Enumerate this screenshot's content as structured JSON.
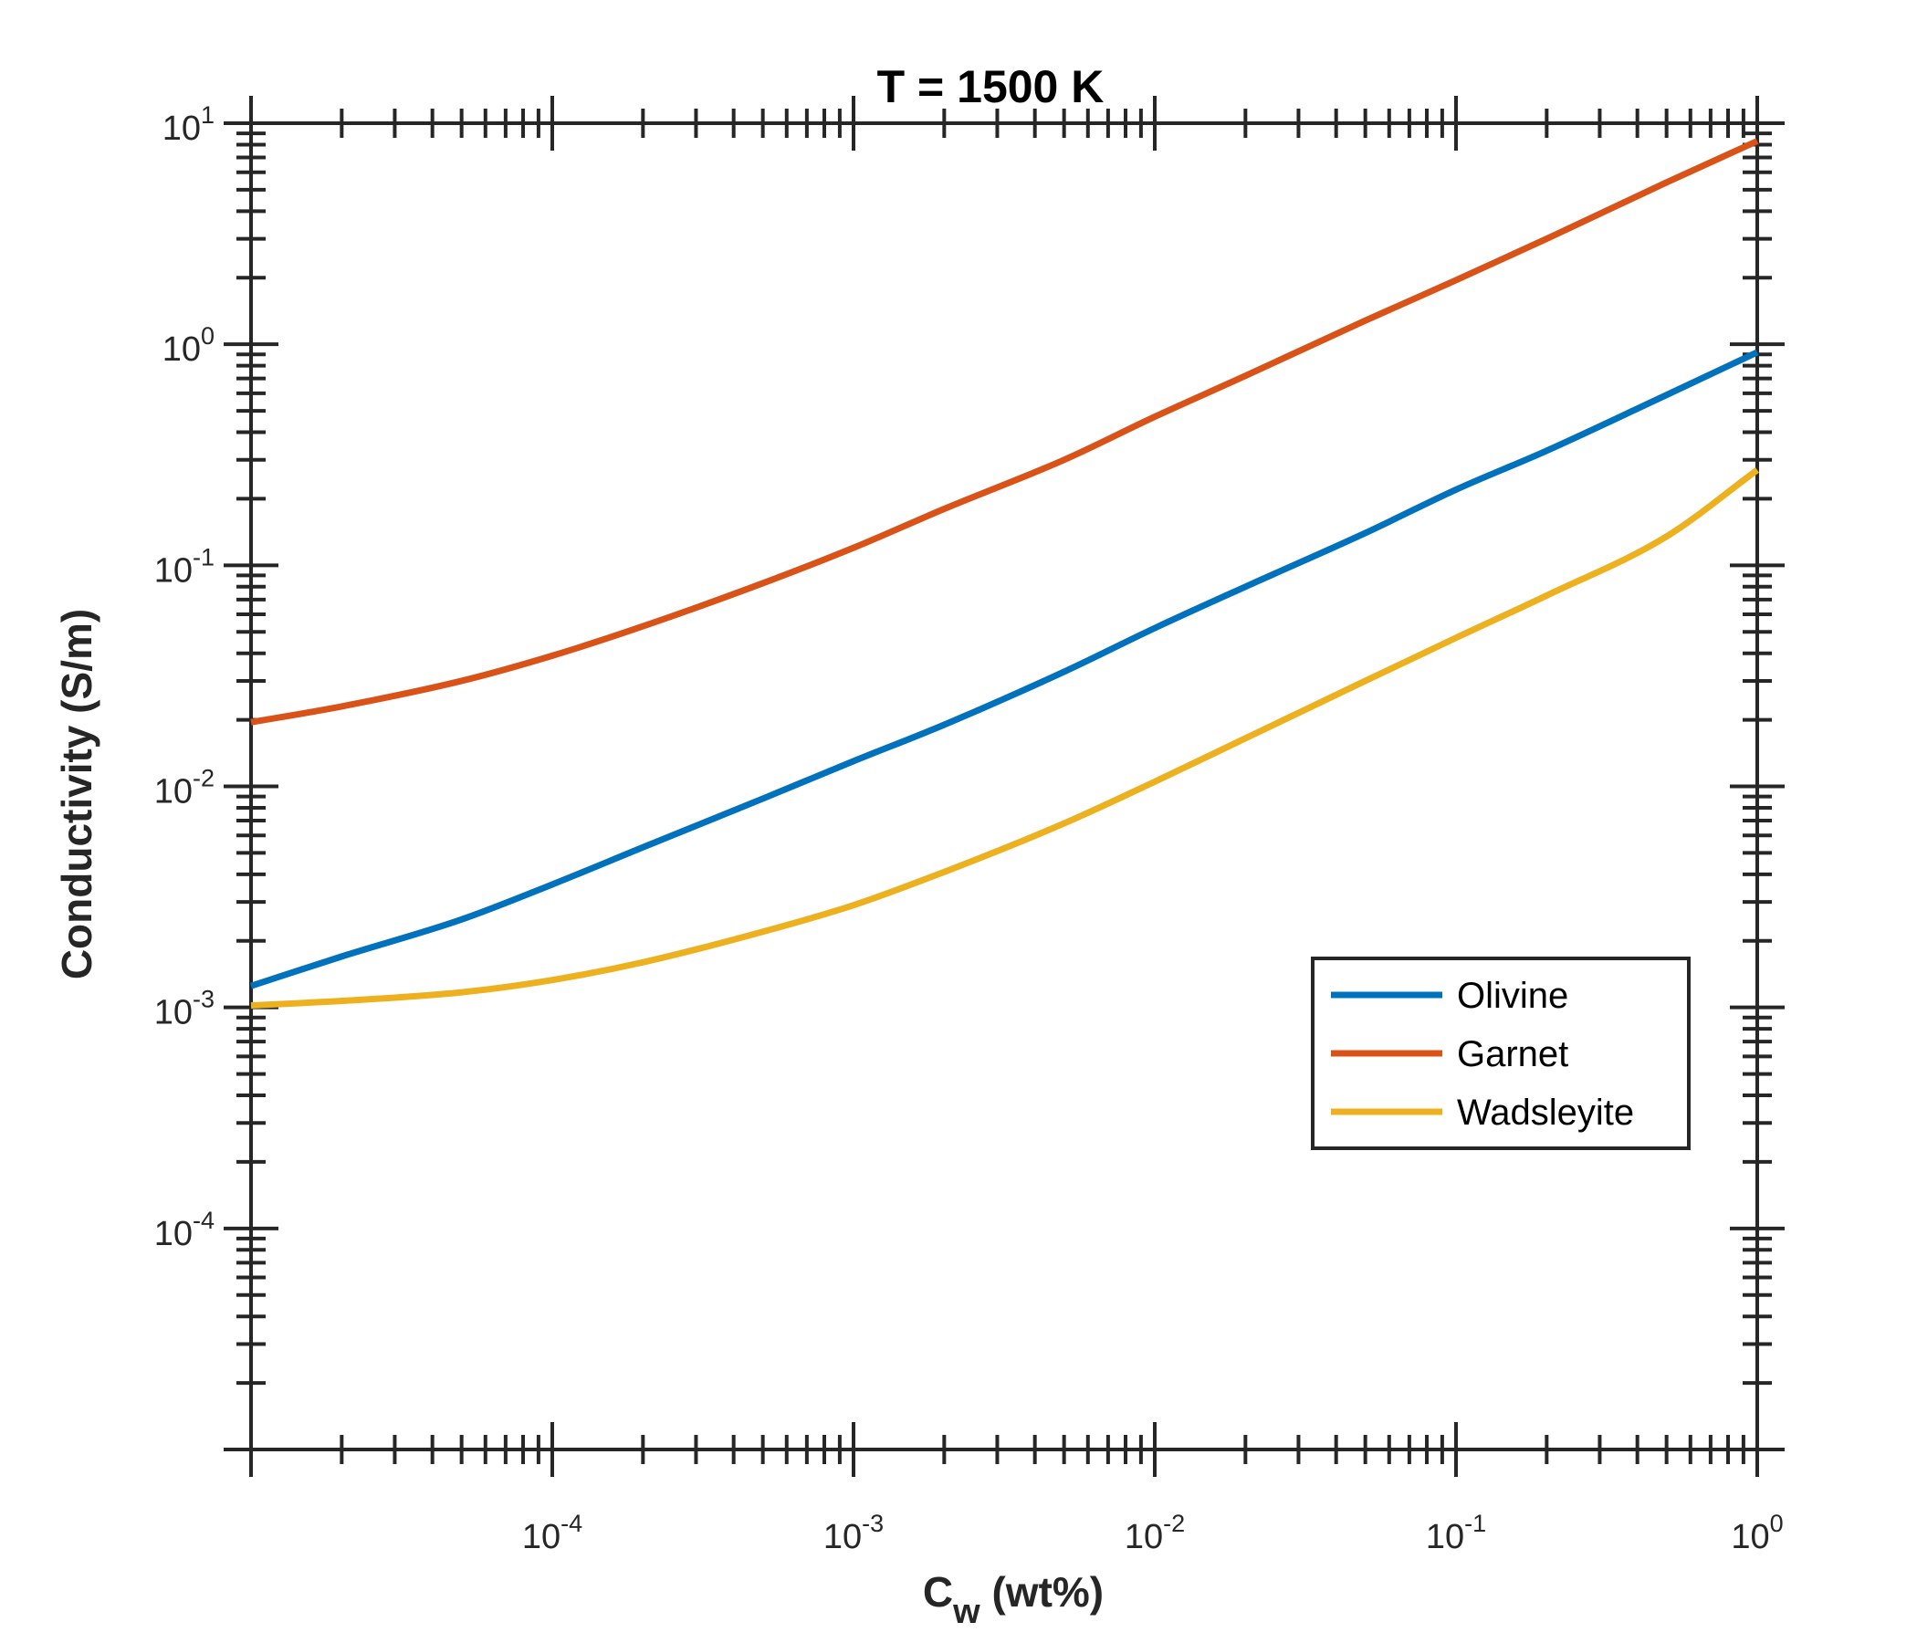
{
  "chart_data": {
    "type": "line",
    "title": "T = 1500 K",
    "xlabel": {
      "main": "C",
      "sub": "w",
      "rest": " (wt%)"
    },
    "ylabel": "Conductivity (S/m)",
    "xscale": "log",
    "yscale": "log",
    "xlim": [
      1e-05,
      1
    ],
    "ylim": [
      1e-05,
      10
    ],
    "x_ticks": [
      {
        "value": 0.0001,
        "base": "10",
        "exp": "-4"
      },
      {
        "value": 0.001,
        "base": "10",
        "exp": "-3"
      },
      {
        "value": 0.01,
        "base": "10",
        "exp": "-2"
      },
      {
        "value": 0.1,
        "base": "10",
        "exp": "-1"
      },
      {
        "value": 1,
        "base": "10",
        "exp": "0"
      }
    ],
    "y_ticks": [
      {
        "value": 0.0001,
        "base": "10",
        "exp": "-4"
      },
      {
        "value": 0.001,
        "base": "10",
        "exp": "-3"
      },
      {
        "value": 0.01,
        "base": "10",
        "exp": "-2"
      },
      {
        "value": 0.1,
        "base": "10",
        "exp": "-1"
      },
      {
        "value": 1,
        "base": "10",
        "exp": "0"
      },
      {
        "value": 10,
        "base": "10",
        "exp": "1"
      }
    ],
    "grid": false,
    "legend_position": "right, lower-middle",
    "series": [
      {
        "name": "Olivine",
        "color": "#0072BD",
        "points": [
          [
            1e-05,
            0.00125
          ],
          [
            2e-05,
            0.0017
          ],
          [
            5e-05,
            0.0025
          ],
          [
            0.0001,
            0.0036
          ],
          [
            0.0002,
            0.0053
          ],
          [
            0.0005,
            0.0088
          ],
          [
            0.001,
            0.013
          ],
          [
            0.002,
            0.019
          ],
          [
            0.005,
            0.033
          ],
          [
            0.01,
            0.052
          ],
          [
            0.02,
            0.08
          ],
          [
            0.05,
            0.14
          ],
          [
            0.1,
            0.22
          ],
          [
            0.2,
            0.33
          ],
          [
            0.5,
            0.59
          ],
          [
            1,
            0.92
          ]
        ]
      },
      {
        "name": "Garnet",
        "color": "#D95319",
        "points": [
          [
            1e-05,
            0.0195
          ],
          [
            2e-05,
            0.023
          ],
          [
            5e-05,
            0.03
          ],
          [
            0.0001,
            0.039
          ],
          [
            0.0002,
            0.053
          ],
          [
            0.0005,
            0.083
          ],
          [
            0.001,
            0.12
          ],
          [
            0.002,
            0.18
          ],
          [
            0.005,
            0.3
          ],
          [
            0.01,
            0.47
          ],
          [
            0.02,
            0.72
          ],
          [
            0.05,
            1.28
          ],
          [
            0.1,
            1.95
          ],
          [
            0.2,
            3.0
          ],
          [
            0.5,
            5.4
          ],
          [
            1,
            8.3
          ]
        ]
      },
      {
        "name": "Wadsleyite",
        "color": "#EDB120",
        "points": [
          [
            1e-05,
            0.00102
          ],
          [
            2e-05,
            0.00107
          ],
          [
            5e-05,
            0.00117
          ],
          [
            0.0001,
            0.00133
          ],
          [
            0.0002,
            0.0016
          ],
          [
            0.0005,
            0.0022
          ],
          [
            0.001,
            0.0029
          ],
          [
            0.002,
            0.0041
          ],
          [
            0.005,
            0.0068
          ],
          [
            0.01,
            0.0105
          ],
          [
            0.02,
            0.0165
          ],
          [
            0.05,
            0.03
          ],
          [
            0.1,
            0.047
          ],
          [
            0.2,
            0.073
          ],
          [
            0.5,
            0.135
          ],
          [
            1,
            0.27
          ]
        ]
      }
    ]
  }
}
